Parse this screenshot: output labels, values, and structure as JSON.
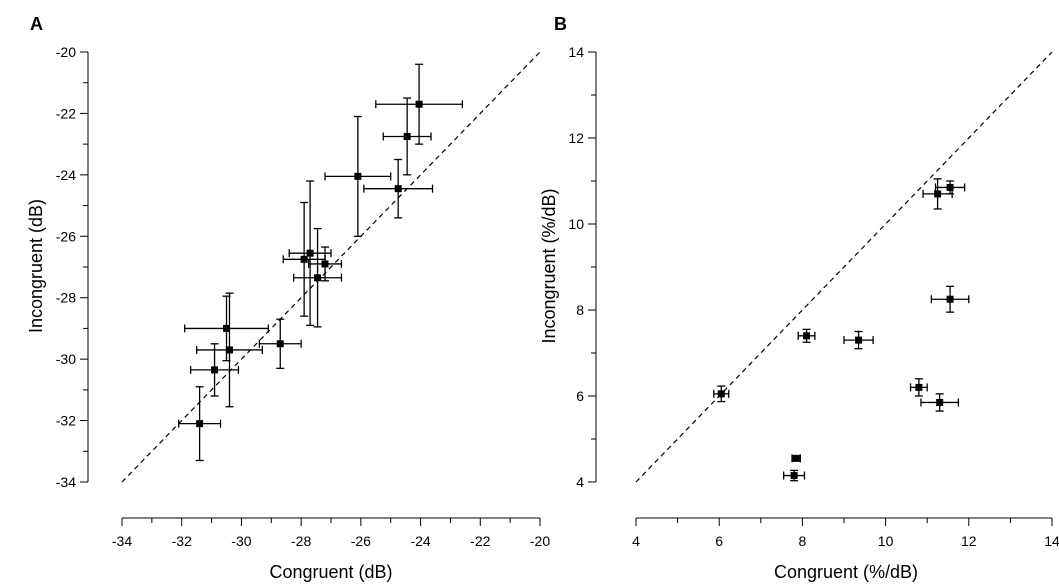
{
  "chart_data": [
    {
      "type": "scatter",
      "panel_label": "A",
      "title": "",
      "xlabel": "Congruent (dB)",
      "ylabel": "Incongruent (dB)",
      "xlim": [
        -34,
        -20
      ],
      "ylim": [
        -34,
        -20
      ],
      "xticks": [
        -34,
        -32,
        -30,
        -28,
        -26,
        -24,
        -22,
        -20
      ],
      "yticks": [
        -34,
        -32,
        -30,
        -28,
        -26,
        -24,
        -22,
        -20
      ],
      "diagonal": "dashed identity line",
      "marker": "filled square with x and y error bars",
      "points": [
        {
          "x": -31.4,
          "y": -32.1,
          "xerr": 0.7,
          "yerr": 1.2
        },
        {
          "x": -30.9,
          "y": -30.35,
          "xerr": 0.8,
          "yerr": 0.85
        },
        {
          "x": -30.5,
          "y": -29.0,
          "xerr": 1.4,
          "yerr": 1.05
        },
        {
          "x": -30.4,
          "y": -29.7,
          "xerr": 1.1,
          "yerr": 1.85
        },
        {
          "x": -28.7,
          "y": -29.5,
          "xerr": 0.7,
          "yerr": 0.8
        },
        {
          "x": -27.9,
          "y": -26.75,
          "xerr": 0.7,
          "yerr": 1.85
        },
        {
          "x": -27.7,
          "y": -26.55,
          "xerr": 0.7,
          "yerr": 2.35
        },
        {
          "x": -27.45,
          "y": -27.35,
          "xerr": 0.8,
          "yerr": 1.6
        },
        {
          "x": -27.2,
          "y": -26.9,
          "xerr": 0.55,
          "yerr": 0.55
        },
        {
          "x": -26.1,
          "y": -24.05,
          "xerr": 1.1,
          "yerr": 1.95
        },
        {
          "x": -24.75,
          "y": -24.45,
          "xerr": 1.15,
          "yerr": 0.95
        },
        {
          "x": -24.45,
          "y": -22.75,
          "xerr": 0.8,
          "yerr": 1.25
        },
        {
          "x": -24.05,
          "y": -21.7,
          "xerr": 1.45,
          "yerr": 1.3
        }
      ]
    },
    {
      "type": "scatter",
      "panel_label": "B",
      "title": "",
      "xlabel": "Congruent (%/dB)",
      "ylabel": "Incongruent (%/dB)",
      "xlim": [
        4,
        14
      ],
      "ylim": [
        4,
        14
      ],
      "xticks": [
        4,
        6,
        8,
        10,
        12,
        14
      ],
      "yticks": [
        4,
        6,
        8,
        10,
        12,
        14
      ],
      "diagonal": "dashed identity line",
      "marker": "filled square with x and y error bars",
      "points": [
        {
          "x": 6.05,
          "y": 6.05,
          "xerr": 0.18,
          "yerr": 0.18
        },
        {
          "x": 7.8,
          "y": 4.15,
          "xerr": 0.25,
          "yerr": 0.12
        },
        {
          "x": 7.85,
          "y": 4.55,
          "xerr": 0.1,
          "yerr": 0.06
        },
        {
          "x": 8.1,
          "y": 7.4,
          "xerr": 0.2,
          "yerr": 0.15
        },
        {
          "x": 9.35,
          "y": 7.3,
          "xerr": 0.35,
          "yerr": 0.2
        },
        {
          "x": 10.8,
          "y": 6.2,
          "xerr": 0.2,
          "yerr": 0.2
        },
        {
          "x": 11.25,
          "y": 10.7,
          "xerr": 0.35,
          "yerr": 0.35
        },
        {
          "x": 11.3,
          "y": 5.85,
          "xerr": 0.45,
          "yerr": 0.2
        },
        {
          "x": 11.55,
          "y": 8.25,
          "xerr": 0.45,
          "yerr": 0.3
        },
        {
          "x": 11.55,
          "y": 10.85,
          "xerr": 0.35,
          "yerr": 0.15
        }
      ]
    }
  ]
}
